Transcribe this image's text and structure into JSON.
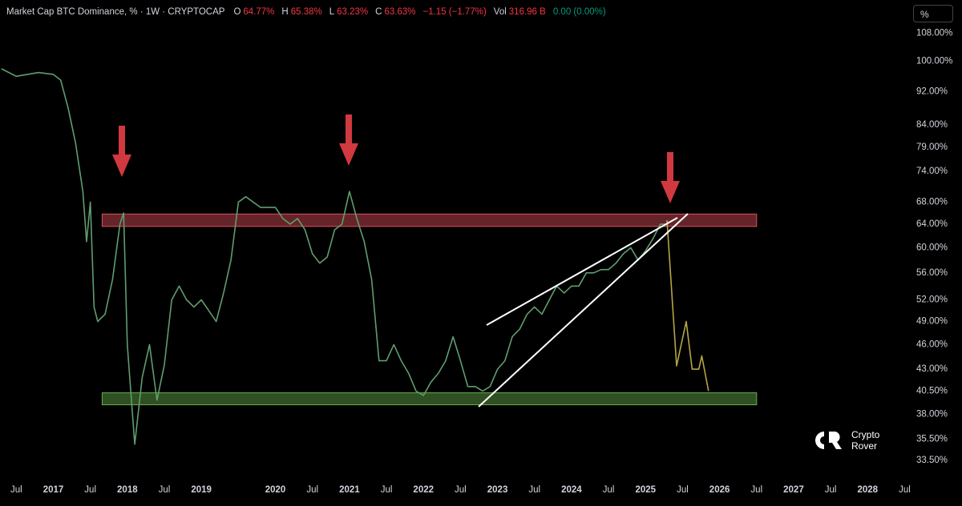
{
  "header": {
    "title": "Market Cap BTC Dominance, % · 1W · CRYPTOCAP",
    "open_label": "O",
    "open": "64.77%",
    "high_label": "H",
    "high": "65.38%",
    "low_label": "L",
    "low": "63.23%",
    "close_label": "C",
    "close": "63.63%",
    "change": "−1.15 (−1.77%)",
    "vol_label": "Vol",
    "vol": "316.96 B",
    "vol_change": "0.00 (0.00%)"
  },
  "scale_button": "%",
  "watermark": [
    "Crypto",
    "Rover"
  ],
  "chart_data": {
    "type": "line",
    "log_scale": true,
    "xlim": [
      2016.28,
      2028.3
    ],
    "ylim": [
      32.4,
      110.8
    ],
    "xticks": [
      {
        "value": 2016.5,
        "label": "Jul"
      },
      2017,
      {
        "value": 2017.5,
        "label": "Jul"
      },
      2018,
      {
        "value": 2018.5,
        "label": "Jul"
      },
      2019,
      2020,
      {
        "value": 2020.5,
        "label": "Jul"
      },
      2021,
      {
        "value": 2021.5,
        "label": "Jul"
      },
      2022,
      {
        "value": 2022.5,
        "label": "Jul"
      },
      2023,
      {
        "value": 2023.5,
        "label": "Jul"
      },
      2024,
      {
        "value": 2024.5,
        "label": "Jul"
      },
      2025,
      {
        "value": 2025.5,
        "label": "Jul"
      },
      2026,
      {
        "value": 2026.5,
        "label": "Jul"
      },
      2027,
      {
        "value": 2027.5,
        "label": "Jul"
      },
      2028,
      {
        "value": 2028.5,
        "label": "Jul"
      }
    ],
    "yticks": [
      {
        "value": 108,
        "label": "108.00%"
      },
      {
        "value": 100,
        "label": "100.00%"
      },
      {
        "value": 92,
        "label": "92.00%"
      },
      {
        "value": 84,
        "label": "84.00%"
      },
      {
        "value": 79,
        "label": "79.00%"
      },
      {
        "value": 74,
        "label": "74.00%"
      },
      {
        "value": 68,
        "label": "68.00%"
      },
      {
        "value": 64,
        "label": "64.00%"
      },
      {
        "value": 60,
        "label": "60.00%"
      },
      {
        "value": 56,
        "label": "56.00%"
      },
      {
        "value": 52,
        "label": "52.00%"
      },
      {
        "value": 49,
        "label": "49.00%"
      },
      {
        "value": 46,
        "label": "46.00%"
      },
      {
        "value": 43,
        "label": "43.00%"
      },
      {
        "value": 40.5,
        "label": "40.50%"
      },
      {
        "value": 38,
        "label": "38.00%"
      },
      {
        "value": 35.5,
        "label": "35.50%"
      },
      {
        "value": 33.5,
        "label": "33.50%"
      }
    ],
    "zones": [
      {
        "x": [
          2017.66,
          2026.5
        ],
        "y": [
          63.6,
          65.8
        ],
        "color": "#e0505a"
      },
      {
        "x": [
          2017.66,
          2026.5
        ],
        "y": [
          39.0,
          40.3
        ],
        "color": "#6ab04c"
      }
    ],
    "series": [
      {
        "color": "#5f9e6e",
        "x": [
          2016.3,
          2016.5,
          2016.8,
          2017.0,
          2017.1,
          2017.2,
          2017.3,
          2017.4,
          2017.45,
          2017.5,
          2017.55,
          2017.6,
          2017.7,
          2017.8,
          2017.9,
          2017.95,
          2018.0,
          2018.05,
          2018.1,
          2018.2,
          2018.3,
          2018.4,
          2018.5,
          2018.6,
          2018.7,
          2018.8,
          2018.9,
          2019.0,
          2019.1,
          2019.2,
          2019.3,
          2019.4,
          2019.5,
          2019.6,
          2019.7,
          2019.8,
          2019.9,
          2020.0,
          2020.1,
          2020.2,
          2020.3,
          2020.4,
          2020.5,
          2020.6,
          2020.7,
          2020.8,
          2020.9,
          2021.0,
          2021.1,
          2021.2,
          2021.3,
          2021.4,
          2021.5,
          2021.6,
          2021.7,
          2021.8,
          2021.9,
          2022.0,
          2022.1,
          2022.2,
          2022.3,
          2022.4,
          2022.5,
          2022.6,
          2022.7,
          2022.8,
          2022.9,
          2023.0,
          2023.1,
          2023.2,
          2023.3,
          2023.4,
          2023.5,
          2023.6,
          2023.7,
          2023.8,
          2023.9,
          2024.0,
          2024.1,
          2024.2,
          2024.3,
          2024.4,
          2024.5,
          2024.6,
          2024.7,
          2024.8,
          2024.9,
          2025.0,
          2025.1,
          2025.2,
          2025.29
        ],
        "values": [
          98,
          96,
          97,
          96.5,
          95,
          88,
          80,
          70,
          61,
          68,
          51,
          49,
          50,
          55,
          64,
          66,
          46,
          40,
          35,
          42,
          46,
          39.5,
          43.5,
          52,
          54,
          52,
          51,
          52,
          50.5,
          49,
          53,
          58,
          68,
          69,
          68,
          67,
          67,
          67,
          65,
          64,
          65,
          63,
          59,
          57.5,
          58.5,
          63,
          64,
          70,
          65,
          61,
          55,
          44,
          44,
          46,
          44,
          42.5,
          40.5,
          40,
          41.5,
          42.5,
          44,
          47,
          44,
          41,
          41,
          40.5,
          41,
          43,
          44,
          47,
          48,
          50,
          51,
          50,
          52,
          54,
          53,
          54,
          54,
          56,
          56,
          56.5,
          56.5,
          57.5,
          59,
          60,
          58,
          59.5,
          61.5,
          64,
          64
        ]
      },
      {
        "color": "#b5a642",
        "x": [
          2025.29,
          2025.42,
          2025.55,
          2025.63,
          2025.72,
          2025.76,
          2025.85
        ],
        "values": [
          64.7,
          43.4,
          49,
          43,
          43,
          44.6,
          40.5
        ]
      }
    ]
  }
}
